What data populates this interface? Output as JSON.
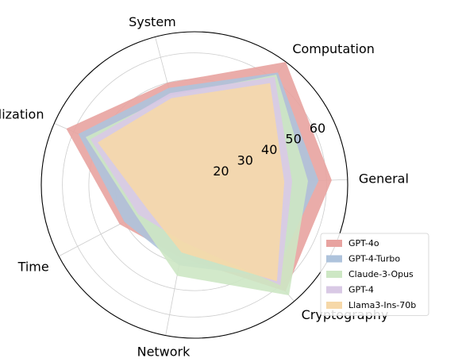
{
  "chart_data": {
    "type": "radar",
    "axes": [
      "General",
      "Computation",
      "System",
      "Visualization",
      "Time",
      "Network",
      "Cryptography"
    ],
    "rlim": [
      10,
      68
    ],
    "rticks": [
      20,
      30,
      40,
      50,
      60
    ],
    "grid": true,
    "legend_position": "lower-right",
    "series": [
      {
        "name": "GPT-4o",
        "color": "#e8a3a0",
        "values": [
          62,
          68,
          50,
          63,
          42,
          38,
          63
        ]
      },
      {
        "name": "GPT-4-Turbo",
        "color": "#aec3dc",
        "values": [
          57,
          63,
          48,
          58,
          40,
          41,
          56
        ]
      },
      {
        "name": "Claude-3-Opus",
        "color": "#cde7c4",
        "values": [
          53,
          62,
          45,
          55,
          35,
          45,
          65
        ]
      },
      {
        "name": "GPT-4",
        "color": "#d9c9e5",
        "values": [
          47,
          61,
          46,
          53,
          34,
          32,
          60
        ]
      },
      {
        "name": "Llama3-Ins-70b",
        "color": "#f6d8a8",
        "values": [
          44,
          58,
          44,
          50,
          30,
          36,
          58
        ]
      }
    ]
  }
}
